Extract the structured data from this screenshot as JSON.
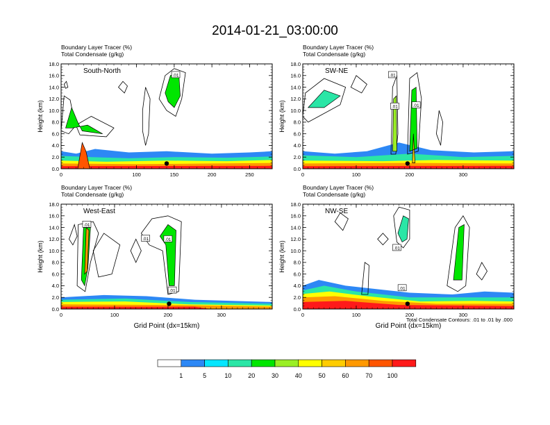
{
  "title": "2014-01-21_03:00:00",
  "footnote": "Total Condensate Contours: .01 to .01 by .000",
  "colorbar": {
    "labels": [
      "1",
      "5",
      "10",
      "20",
      "30",
      "40",
      "50",
      "60",
      "70",
      "100"
    ],
    "colors": [
      "#ffffff",
      "#2d88f5",
      "#05e6ff",
      "#2ae6a6",
      "#00e600",
      "#9aef25",
      "#ffff00",
      "#ffcc00",
      "#ff9900",
      "#ff5500",
      "#ff1a1a"
    ]
  },
  "chart_data": [
    {
      "type": "heatmap",
      "panel_label": "South-North",
      "subtitle_1": "Boundary Layer Tracer   (%)",
      "subtitle_2": "Total Condensate   (g/kg)",
      "ylabel": "Height (km)",
      "xlabel": "",
      "xlim": [
        0,
        280
      ],
      "ylim": [
        0,
        18
      ],
      "xticks": [
        0,
        100,
        150,
        200,
        250
      ],
      "yticks": [
        "0.0",
        "2.0",
        "4.0",
        "6.0",
        "8.0",
        "10.0",
        "12.0",
        "14.0",
        "16.0",
        "18.0"
      ],
      "xtick_labels": [
        "0",
        "100",
        "150",
        "200",
        "250"
      ],
      "marker_x": 140,
      "contour_labels": [
        {
          "text": ".01",
          "x": 152,
          "y": 16.1
        }
      ]
    },
    {
      "type": "heatmap",
      "panel_label": "SW-NE",
      "subtitle_1": "Boundary Layer Tracer   (%)",
      "subtitle_2": "Total Condensate   (g/kg)",
      "ylabel": "Height (km)",
      "xlabel": "",
      "xlim": [
        0,
        395
      ],
      "ylim": [
        0,
        18
      ],
      "xticks": [
        0,
        100,
        200,
        300
      ],
      "yticks": [
        "0.0",
        "2.0",
        "4.0",
        "6.0",
        "8.0",
        "10.0",
        "12.0",
        "14.0",
        "16.0",
        "18.0"
      ],
      "xtick_labels": [
        "0",
        "100",
        "200",
        "300"
      ],
      "marker_x": 196,
      "contour_labels": [
        {
          "text": ".01",
          "x": 168,
          "y": 16.1
        },
        {
          "text": ".01",
          "x": 172,
          "y": 10.7
        },
        {
          "text": ".01",
          "x": 212,
          "y": 10.9
        }
      ]
    },
    {
      "type": "heatmap",
      "panel_label": "West-East",
      "subtitle_1": "Boundary Layer Tracer   (%)",
      "subtitle_2": "Total Condensate   (g/kg)",
      "ylabel": "Height (km)",
      "xlabel": "Grid Point (dx=15km)",
      "xlim": [
        0,
        395
      ],
      "ylim": [
        0,
        18
      ],
      "xticks": [
        0,
        100,
        200,
        300
      ],
      "yticks": [
        "0.0",
        "2.0",
        "4.0",
        "6.0",
        "8.0",
        "10.0",
        "12.0",
        "14.0",
        "16.0",
        "18.0"
      ],
      "xtick_labels": [
        "0",
        "100",
        "200",
        "300"
      ],
      "marker_x": 202,
      "contour_labels": [
        {
          "text": ".01",
          "x": 48,
          "y": 14.5
        },
        {
          "text": ".01",
          "x": 158,
          "y": 12.1
        },
        {
          "text": ".01",
          "x": 200,
          "y": 12.0
        },
        {
          "text": ".01",
          "x": 208,
          "y": 3.2
        }
      ]
    },
    {
      "type": "heatmap",
      "panel_label": "NW-SE",
      "subtitle_1": "Boundary Layer Tracer   (%)",
      "subtitle_2": "Total Condensate   (g/kg)",
      "ylabel": "Height (km)",
      "xlabel": "Grid Point (dx=15km)",
      "xlim": [
        0,
        395
      ],
      "ylim": [
        0,
        18
      ],
      "xticks": [
        0,
        100,
        200,
        300
      ],
      "yticks": [
        "0.0",
        "2.0",
        "4.0",
        "6.0",
        "8.0",
        "10.0",
        "12.0",
        "14.0",
        "16.0",
        "18.0"
      ],
      "xtick_labels": [
        "0",
        "100",
        "200",
        "300"
      ],
      "marker_x": 196,
      "contour_labels": [
        {
          "text": ".01",
          "x": 176,
          "y": 10.5
        },
        {
          "text": ".01",
          "x": 186,
          "y": 3.6
        }
      ]
    }
  ]
}
